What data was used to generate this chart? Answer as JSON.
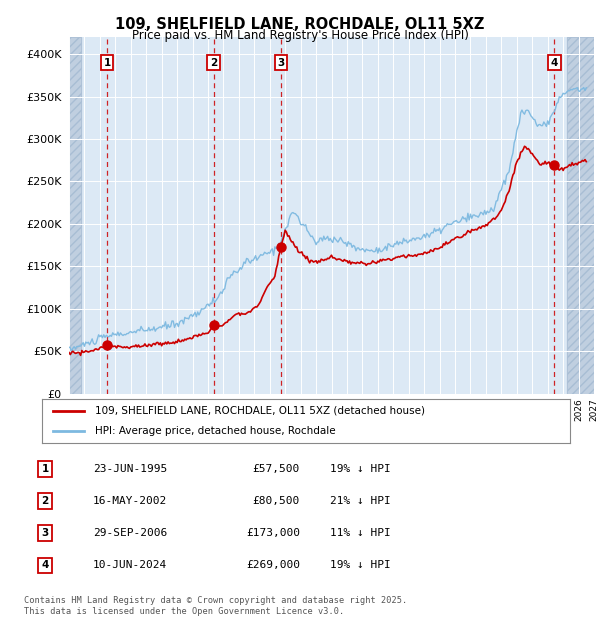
{
  "title": "109, SHELFIELD LANE, ROCHDALE, OL11 5XZ",
  "subtitle": "Price paid vs. HM Land Registry's House Price Index (HPI)",
  "ylim": [
    0,
    420000
  ],
  "xlim_start": 1993.0,
  "xlim_end": 2027.0,
  "bg_color": "#dce9f5",
  "hatch_color": "#c0cfe0",
  "sale_points": [
    {
      "label": "1",
      "date_dec": 1995.475,
      "price": 57500
    },
    {
      "label": "2",
      "date_dec": 2002.37,
      "price": 80500
    },
    {
      "label": "3",
      "date_dec": 2006.745,
      "price": 173000
    },
    {
      "label": "4",
      "date_dec": 2024.44,
      "price": 269000
    }
  ],
  "legend_line1": "109, SHELFIELD LANE, ROCHDALE, OL11 5XZ (detached house)",
  "legend_line2": "HPI: Average price, detached house, Rochdale",
  "table_rows": [
    {
      "num": "1",
      "date": "23-JUN-1995",
      "price": "£57,500",
      "hpi": "19% ↓ HPI"
    },
    {
      "num": "2",
      "date": "16-MAY-2002",
      "price": "£80,500",
      "hpi": "21% ↓ HPI"
    },
    {
      "num": "3",
      "date": "29-SEP-2006",
      "price": "£173,000",
      "hpi": "11% ↓ HPI"
    },
    {
      "num": "4",
      "date": "10-JUN-2024",
      "price": "£269,000",
      "hpi": "19% ↓ HPI"
    }
  ],
  "footnote": "Contains HM Land Registry data © Crown copyright and database right 2025.\nThis data is licensed under the Open Government Licence v3.0.",
  "hpi_line_color": "#7db9e0",
  "price_line_color": "#cc0000",
  "sale_dot_color": "#cc0000",
  "vline_color": "#cc0000",
  "label_box_color": "#cc0000",
  "ytick_values": [
    0,
    50000,
    100000,
    150000,
    200000,
    250000,
    300000,
    350000,
    400000
  ]
}
